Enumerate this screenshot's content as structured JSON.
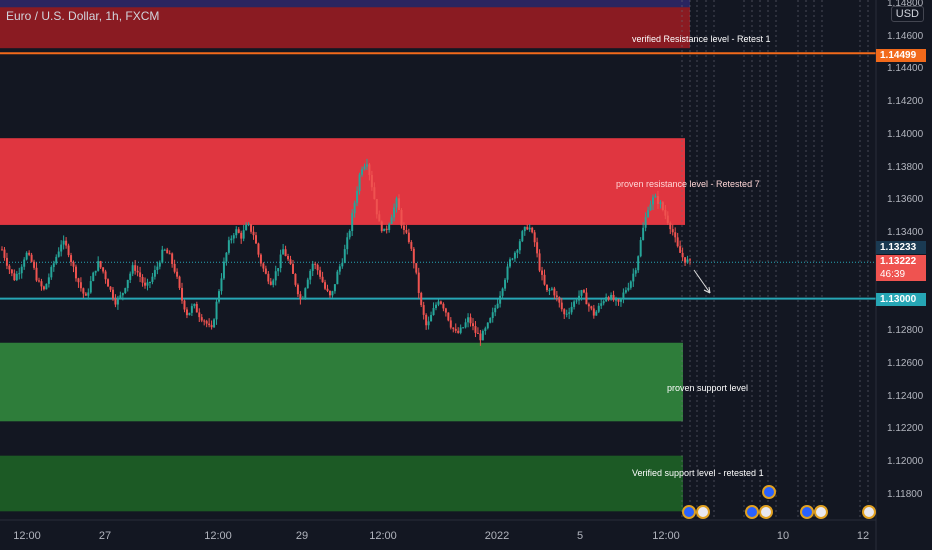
{
  "header": {
    "symbol_title": "Euro / U.S. Dollar, 1h, FXCM",
    "currency_button": "USD"
  },
  "zones": {
    "verified_resistance_label": "verified Resistance level - Retest 1",
    "proven_resistance_label": "proven resistance level - Retested 7",
    "proven_support_label": "proven support level",
    "verified_support_label": "Verified support level - retested 1"
  },
  "price_axis": {
    "ticks": [
      "1.14800",
      "1.14600",
      "1.14400",
      "1.14200",
      "1.14000",
      "1.13800",
      "1.13600",
      "1.13400",
      "1.13200",
      "1.13000",
      "1.12800",
      "1.12600",
      "1.12400",
      "1.12200",
      "1.12000",
      "1.11800"
    ],
    "tags": {
      "orange_level": "1.14499",
      "high_tag": "1.13233",
      "current_price": "1.13222",
      "countdown": "46:39",
      "support_line": "1.13000"
    }
  },
  "time_axis": {
    "ticks": [
      "12:00",
      "27",
      "12:00",
      "29",
      "12:00",
      "2022",
      "5",
      "12:00",
      "10",
      "12",
      "12:00"
    ]
  },
  "colors": {
    "background": "#131722",
    "verified_resistance_zone": "#8a1b22",
    "proven_resistance_zone": "#e03640",
    "proven_support_zone": "#2e7d3a",
    "verified_support_zone": "#1c5a25",
    "orange_line": "#f26a1b",
    "support_line": "#26a6b5",
    "candle_up": "#26a69a",
    "candle_down": "#ef5350"
  },
  "icons": [
    "arrow-down-right-icon",
    "economic-event-icon"
  ],
  "chart_data": {
    "type": "candlestick",
    "title": "Euro / U.S. Dollar, 1h, FXCM",
    "ylim": [
      1.117,
      1.1485
    ],
    "close_path": [
      1.133,
      1.132,
      1.1312,
      1.1318,
      1.1328,
      1.1322,
      1.131,
      1.1305,
      1.1315,
      1.1325,
      1.1335,
      1.133,
      1.1318,
      1.1308,
      1.13,
      1.1312,
      1.1322,
      1.1316,
      1.1306,
      1.1298,
      1.1302,
      1.1312,
      1.132,
      1.1314,
      1.1306,
      1.1312,
      1.132,
      1.133,
      1.1326,
      1.1316,
      1.13,
      1.129,
      1.1296,
      1.129,
      1.1286,
      1.128,
      1.13,
      1.132,
      1.1335,
      1.1342,
      1.1338,
      1.1345,
      1.134,
      1.1325,
      1.1315,
      1.131,
      1.1318,
      1.133,
      1.1322,
      1.131,
      1.1298,
      1.1312,
      1.1322,
      1.1316,
      1.1306,
      1.13,
      1.1315,
      1.1325,
      1.134,
      1.136,
      1.138,
      1.1384,
      1.1366,
      1.1346,
      1.134,
      1.135,
      1.136,
      1.1342,
      1.1336,
      1.132,
      1.1296,
      1.1282,
      1.1292,
      1.13,
      1.1294,
      1.1284,
      1.1278,
      1.1282,
      1.1288,
      1.128,
      1.1276,
      1.1282,
      1.129,
      1.13,
      1.1312,
      1.1324,
      1.133,
      1.134,
      1.1345,
      1.1335,
      1.1316,
      1.1304,
      1.1306,
      1.1298,
      1.129,
      1.1294,
      1.13,
      1.1304,
      1.1296,
      1.129,
      1.1296,
      1.1302,
      1.13,
      1.1296,
      1.1304,
      1.131,
      1.132,
      1.134,
      1.1356,
      1.1362,
      1.1358,
      1.135,
      1.1342,
      1.133,
      1.1324,
      1.1322
    ],
    "zones": [
      {
        "name": "verified resistance",
        "from": 1.1453,
        "to": 1.1478
      },
      {
        "name": "proven resistance",
        "from": 1.1345,
        "to": 1.1398
      },
      {
        "name": "proven support",
        "from": 1.1225,
        "to": 1.1273
      },
      {
        "name": "verified support",
        "from": 1.117,
        "to": 1.1204
      }
    ],
    "levels": [
      1.14499,
      1.13,
      1.13222
    ]
  }
}
